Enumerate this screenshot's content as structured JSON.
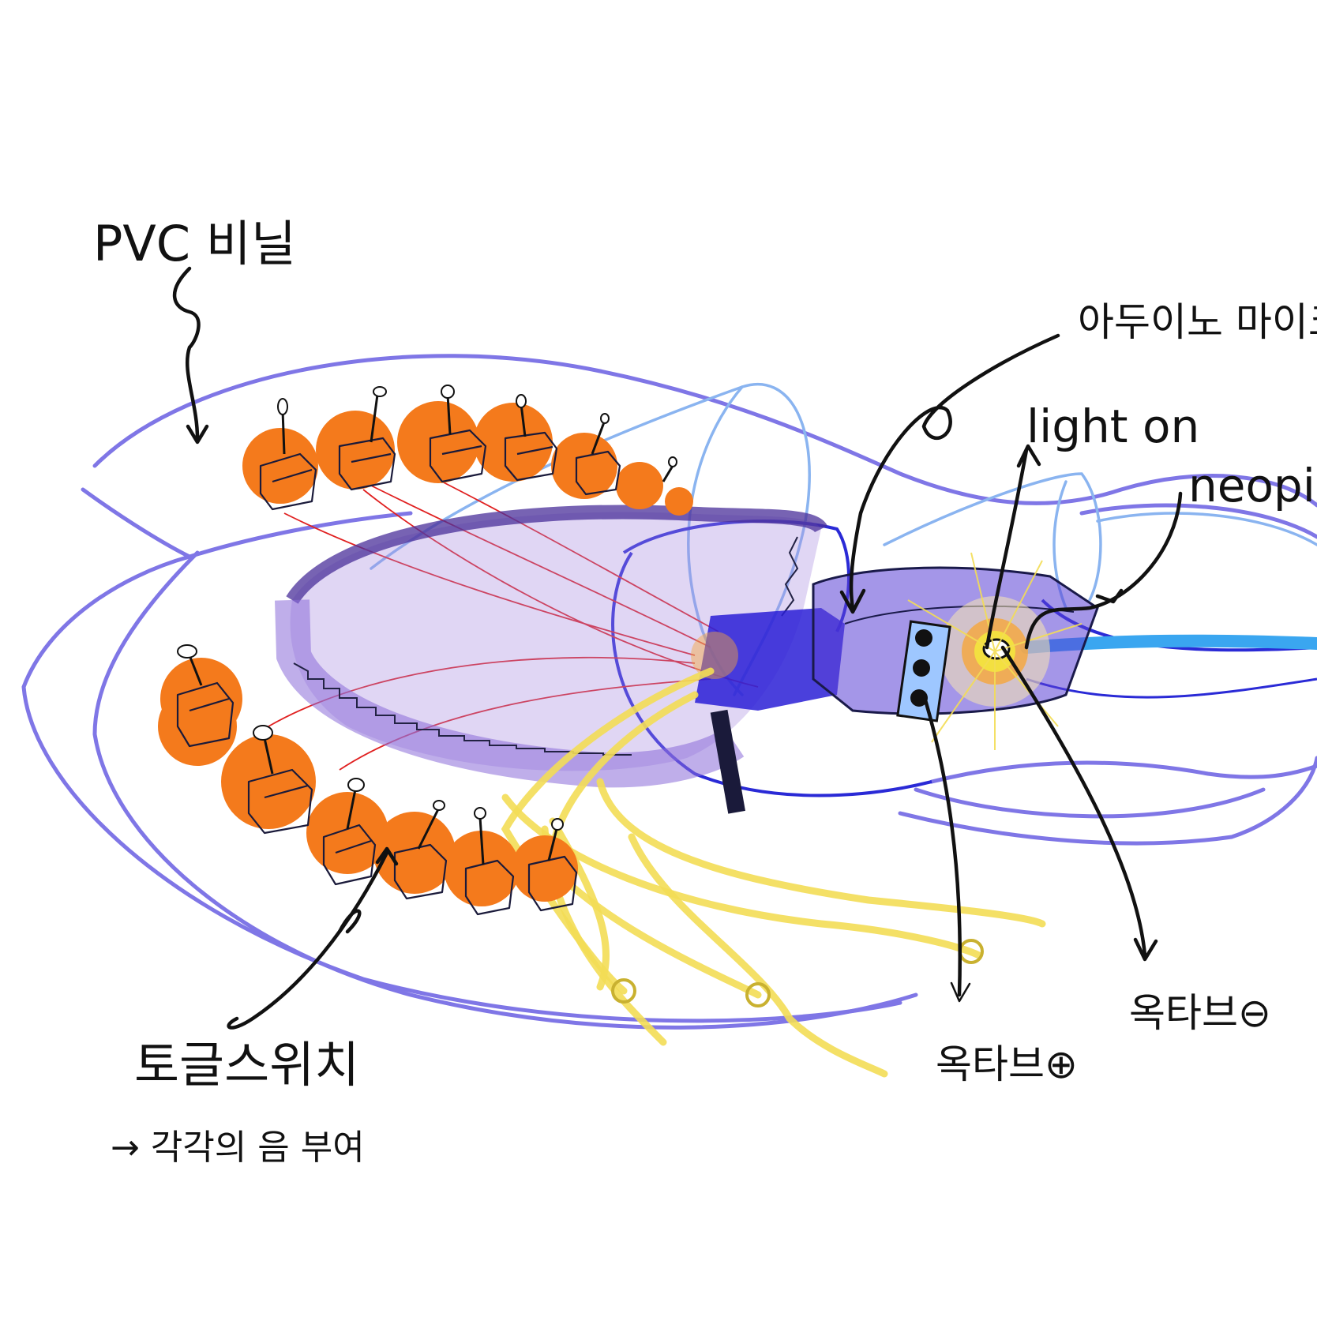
{
  "labels": {
    "pvc": "PVC 비닐",
    "arduino": "아두이노 마이크",
    "light_on": "light on",
    "neopixel": "neopix",
    "toggle_switch": "토글스위치",
    "toggle_note": "→ 각각의 음 부여",
    "octave_plus": "옥타브⊕",
    "octave_minus": "옥타브⊖"
  },
  "colors": {
    "pvc_outline": "#7f76e6",
    "band_purple": "#a58ae0",
    "band_dark": "#4a2f9a",
    "blob_orange": "#f47a1c",
    "wire_red": "#e02020",
    "tube_yellow": "#f3dd55",
    "cable_blue": "#3aa6f0",
    "ink": "#111111"
  },
  "icons": {
    "switch": "toggle-switch-icon",
    "led": "neopixel-led-icon",
    "button": "push-button-icon"
  }
}
